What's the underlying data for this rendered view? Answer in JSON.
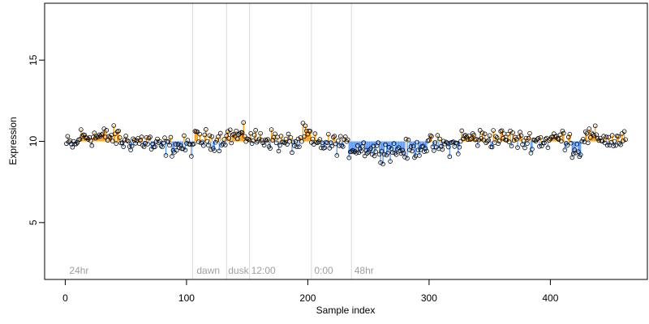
{
  "chart_data": {
    "type": "scatter",
    "xlabel": "Sample index",
    "ylabel": "Expression",
    "xlim": [
      -17,
      480
    ],
    "ylim": [
      1.5,
      18.5
    ],
    "x_ticks": [
      0,
      100,
      200,
      300,
      400
    ],
    "y_ticks": [
      5,
      10,
      15
    ],
    "baseline": 10,
    "colors": {
      "above": "#ff9900",
      "below": "#5599ff",
      "point_stroke": "#000000",
      "separator": "#d9d9d9",
      "group_label": "#a0a0a0"
    },
    "separators": [
      105,
      133,
      152,
      203,
      236
    ],
    "group_labels": [
      {
        "label": "24hr",
        "x": 2
      },
      {
        "label": "dawn",
        "x": 107
      },
      {
        "label": "dusk",
        "x": 133
      },
      {
        "label": "12:00",
        "x": 152
      },
      {
        "label": "0:00",
        "x": 204
      },
      {
        "label": "48hr",
        "x": 237
      }
    ],
    "segments": [
      {
        "from": 1,
        "to": 10,
        "level": 9.8
      },
      {
        "from": 11,
        "to": 45,
        "level": 10.3
      },
      {
        "from": 46,
        "to": 70,
        "level": 10.0
      },
      {
        "from": 71,
        "to": 105,
        "level": 9.7
      },
      {
        "from": 106,
        "to": 130,
        "level": 10.1
      },
      {
        "from": 131,
        "to": 152,
        "level": 10.35
      },
      {
        "from": 153,
        "to": 175,
        "level": 10.15
      },
      {
        "from": 176,
        "to": 194,
        "level": 9.9
      },
      {
        "from": 195,
        "to": 202,
        "level": 10.4
      },
      {
        "from": 203,
        "to": 230,
        "level": 9.85
      },
      {
        "from": 231,
        "to": 250,
        "level": 9.6
      },
      {
        "from": 251,
        "to": 290,
        "level": 9.45
      },
      {
        "from": 291,
        "to": 325,
        "level": 9.75
      },
      {
        "from": 326,
        "to": 370,
        "level": 10.2
      },
      {
        "from": 371,
        "to": 400,
        "level": 10.05
      },
      {
        "from": 401,
        "to": 417,
        "level": 10.2
      },
      {
        "from": 418,
        "to": 425,
        "level": 9.5
      },
      {
        "from": 426,
        "to": 445,
        "level": 10.25
      },
      {
        "from": 446,
        "to": 462,
        "level": 10.05
      }
    ],
    "noise": 0.3,
    "n_points": 462
  }
}
